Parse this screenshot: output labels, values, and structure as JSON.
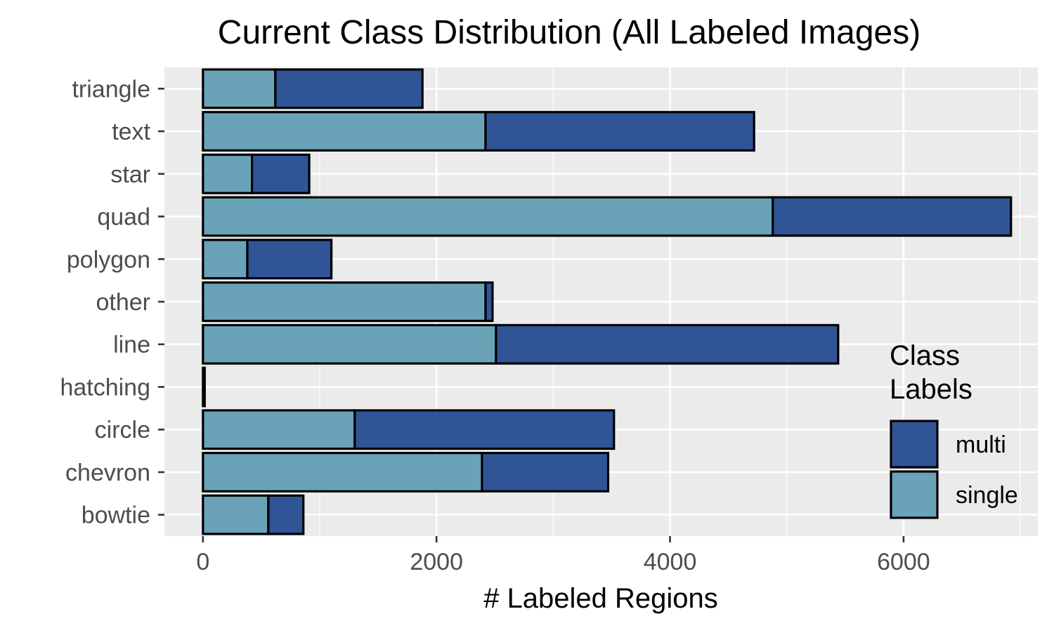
{
  "chart_data": {
    "type": "bar",
    "orientation": "horizontal",
    "stacked": true,
    "title": "Current Class Distribution (All Labeled Images)",
    "xlabel": "# Labeled Regions",
    "ylabel": "",
    "xlim": [
      -330,
      7150
    ],
    "xticks": [
      0,
      2000,
      4000,
      6000
    ],
    "xtick_labels": [
      "0",
      "2000",
      "4000",
      "6000"
    ],
    "categories": [
      "triangle",
      "text",
      "star",
      "quad",
      "polygon",
      "other",
      "line",
      "hatching",
      "circle",
      "chevron",
      "bowtie"
    ],
    "series": [
      {
        "name": "single",
        "color": "#6aa2b8",
        "values": [
          620,
          2420,
          420,
          4880,
          380,
          2420,
          2510,
          10,
          1300,
          2390,
          560
        ]
      },
      {
        "name": "multi",
        "color": "#2f5597",
        "values": [
          1260,
          2300,
          490,
          2040,
          720,
          60,
          2930,
          5,
          2220,
          1080,
          300
        ]
      }
    ],
    "legend": {
      "title": "Class\nLabels",
      "title_lines": [
        "Class",
        "Labels"
      ],
      "position": "right",
      "entries": [
        "multi",
        "single"
      ]
    },
    "grid": true,
    "panel_background": "#ebebeb",
    "grid_color": "#ffffff",
    "bar_outline": "#000000"
  }
}
